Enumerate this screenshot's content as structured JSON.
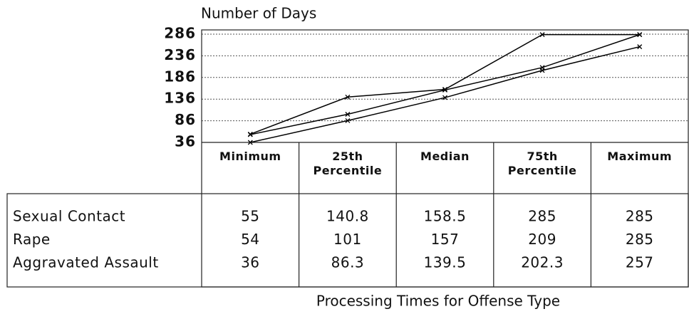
{
  "chart_data": {
    "type": "line",
    "title": "Number of Days",
    "x_label": "Processing Times for Offense Type",
    "categories": [
      "Minimum",
      "25th Percentile",
      "Median",
      "75th Percentile",
      "Maximum"
    ],
    "series": [
      {
        "name": "Sexual Contact",
        "color": "#000000",
        "values": [
          55,
          140.8,
          158.5,
          285,
          285
        ]
      },
      {
        "name": "Rape",
        "color": "#000000",
        "values": [
          54,
          101,
          157,
          209,
          285
        ]
      },
      {
        "name": "Aggravated Assault",
        "color": "#000000",
        "values": [
          36,
          86.3,
          139.5,
          202.3,
          257
        ]
      }
    ],
    "ylim": [
      36,
      286
    ],
    "yticks": [
      36,
      86,
      136,
      186,
      236,
      286
    ],
    "grid": true
  }
}
